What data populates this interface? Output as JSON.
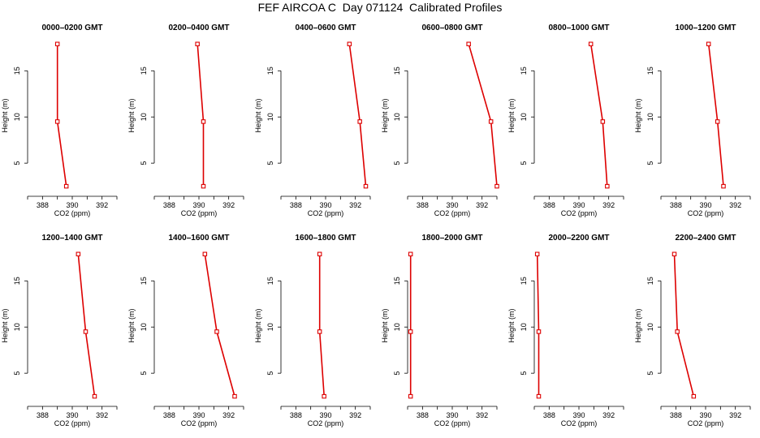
{
  "title": "FEF AIRCOA C  Day 071124  Calibrated Profiles",
  "chart_data": [
    {
      "type": "line",
      "title": "0000–0200 GMT",
      "xlabel": "CO2 (ppm)",
      "ylabel": "Height (m)",
      "xlim": [
        387,
        393
      ],
      "ylim": [
        1.5,
        18.8
      ],
      "xticks": [
        "388",
        "390",
        "392"
      ],
      "yticks": [
        "5",
        "10",
        "15"
      ],
      "color": "#dd0000",
      "points": [
        {
          "x": 389.0,
          "y": 17.9
        },
        {
          "x": 389.0,
          "y": 9.5
        },
        {
          "x": 389.6,
          "y": 2.5
        }
      ]
    },
    {
      "type": "line",
      "title": "0200–0400 GMT",
      "xlabel": "CO2 (ppm)",
      "ylabel": "Height (m)",
      "xlim": [
        387,
        393
      ],
      "ylim": [
        1.5,
        18.8
      ],
      "xticks": [
        "388",
        "390",
        "392"
      ],
      "yticks": [
        "5",
        "10",
        "15"
      ],
      "color": "#dd0000",
      "points": [
        {
          "x": 389.9,
          "y": 17.9
        },
        {
          "x": 390.3,
          "y": 9.5
        },
        {
          "x": 390.3,
          "y": 2.5
        }
      ]
    },
    {
      "type": "line",
      "title": "0400–0600 GMT",
      "xlabel": "CO2 (ppm)",
      "ylabel": "Height (m)",
      "xlim": [
        387,
        393
      ],
      "ylim": [
        1.5,
        18.8
      ],
      "xticks": [
        "388",
        "390",
        "392"
      ],
      "yticks": [
        "5",
        "10",
        "15"
      ],
      "color": "#dd0000",
      "points": [
        {
          "x": 391.6,
          "y": 17.9
        },
        {
          "x": 392.3,
          "y": 9.5
        },
        {
          "x": 392.7,
          "y": 2.5
        }
      ]
    },
    {
      "type": "line",
      "title": "0600–0800 GMT",
      "xlabel": "CO2 (ppm)",
      "ylabel": "Height (m)",
      "xlim": [
        387,
        393
      ],
      "ylim": [
        1.5,
        18.8
      ],
      "xticks": [
        "388",
        "390",
        "392"
      ],
      "yticks": [
        "5",
        "10",
        "15"
      ],
      "color": "#dd0000",
      "points": [
        {
          "x": 391.1,
          "y": 17.9
        },
        {
          "x": 392.6,
          "y": 9.5
        },
        {
          "x": 393.0,
          "y": 2.5
        }
      ]
    },
    {
      "type": "line",
      "title": "0800–1000 GMT",
      "xlabel": "CO2 (ppm)",
      "ylabel": "Height (m)",
      "xlim": [
        387,
        393
      ],
      "ylim": [
        1.5,
        18.8
      ],
      "xticks": [
        "388",
        "390",
        "392"
      ],
      "yticks": [
        "5",
        "10",
        "15"
      ],
      "color": "#dd0000",
      "points": [
        {
          "x": 390.8,
          "y": 17.9
        },
        {
          "x": 391.6,
          "y": 9.5
        },
        {
          "x": 391.9,
          "y": 2.5
        }
      ]
    },
    {
      "type": "line",
      "title": "1000–1200 GMT",
      "xlabel": "CO2 (ppm)",
      "ylabel": "Height (m)",
      "xlim": [
        387,
        393
      ],
      "ylim": [
        1.5,
        18.8
      ],
      "xticks": [
        "388",
        "390",
        "392"
      ],
      "yticks": [
        "5",
        "10",
        "15"
      ],
      "color": "#dd0000",
      "points": [
        {
          "x": 390.2,
          "y": 17.9
        },
        {
          "x": 390.8,
          "y": 9.5
        },
        {
          "x": 391.2,
          "y": 2.5
        }
      ]
    },
    {
      "type": "line",
      "title": "1200–1400 GMT",
      "xlabel": "CO2 (ppm)",
      "ylabel": "Height (m)",
      "xlim": [
        387,
        393
      ],
      "ylim": [
        1.5,
        18.8
      ],
      "xticks": [
        "388",
        "390",
        "392"
      ],
      "yticks": [
        "5",
        "10",
        "15"
      ],
      "color": "#dd0000",
      "points": [
        {
          "x": 390.4,
          "y": 17.9
        },
        {
          "x": 390.9,
          "y": 9.5
        },
        {
          "x": 391.5,
          "y": 2.5
        }
      ]
    },
    {
      "type": "line",
      "title": "1400–1600 GMT",
      "xlabel": "CO2 (ppm)",
      "ylabel": "Height (m)",
      "xlim": [
        387,
        393
      ],
      "ylim": [
        1.5,
        18.8
      ],
      "xticks": [
        "388",
        "390",
        "392"
      ],
      "yticks": [
        "5",
        "10",
        "15"
      ],
      "color": "#dd0000",
      "points": [
        {
          "x": 390.4,
          "y": 17.9
        },
        {
          "x": 391.2,
          "y": 9.5
        },
        {
          "x": 392.4,
          "y": 2.5
        }
      ]
    },
    {
      "type": "line",
      "title": "1600–1800 GMT",
      "xlabel": "CO2 (ppm)",
      "ylabel": "Height (m)",
      "xlim": [
        387,
        393
      ],
      "ylim": [
        1.5,
        18.8
      ],
      "xticks": [
        "388",
        "390",
        "392"
      ],
      "yticks": [
        "5",
        "10",
        "15"
      ],
      "color": "#dd0000",
      "points": [
        {
          "x": 389.6,
          "y": 17.9
        },
        {
          "x": 389.6,
          "y": 9.5
        },
        {
          "x": 389.9,
          "y": 2.5
        }
      ]
    },
    {
      "type": "line",
      "title": "1800–2000 GMT",
      "xlabel": "CO2 (ppm)",
      "ylabel": "Height (m)",
      "xlim": [
        387,
        393
      ],
      "ylim": [
        1.5,
        18.8
      ],
      "xticks": [
        "388",
        "390",
        "392"
      ],
      "yticks": [
        "5",
        "10",
        "15"
      ],
      "color": "#dd0000",
      "points": [
        {
          "x": 387.2,
          "y": 17.9
        },
        {
          "x": 387.2,
          "y": 9.5
        },
        {
          "x": 387.2,
          "y": 2.5
        }
      ]
    },
    {
      "type": "line",
      "title": "2000–2200 GMT",
      "xlabel": "CO2 (ppm)",
      "ylabel": "Height (m)",
      "xlim": [
        387,
        393
      ],
      "ylim": [
        1.5,
        18.8
      ],
      "xticks": [
        "388",
        "390",
        "392"
      ],
      "yticks": [
        "5",
        "10",
        "15"
      ],
      "color": "#dd0000",
      "points": [
        {
          "x": 387.2,
          "y": 17.9
        },
        {
          "x": 387.3,
          "y": 9.5
        },
        {
          "x": 387.3,
          "y": 2.5
        }
      ]
    },
    {
      "type": "line",
      "title": "2200–2400 GMT",
      "xlabel": "CO2 (ppm)",
      "ylabel": "Height (m)",
      "xlim": [
        387,
        393
      ],
      "ylim": [
        1.5,
        18.8
      ],
      "xticks": [
        "388",
        "390",
        "392"
      ],
      "yticks": [
        "5",
        "10",
        "15"
      ],
      "color": "#dd0000",
      "points": [
        {
          "x": 387.9,
          "y": 17.9
        },
        {
          "x": 388.1,
          "y": 9.5
        },
        {
          "x": 389.2,
          "y": 2.5
        }
      ]
    }
  ]
}
